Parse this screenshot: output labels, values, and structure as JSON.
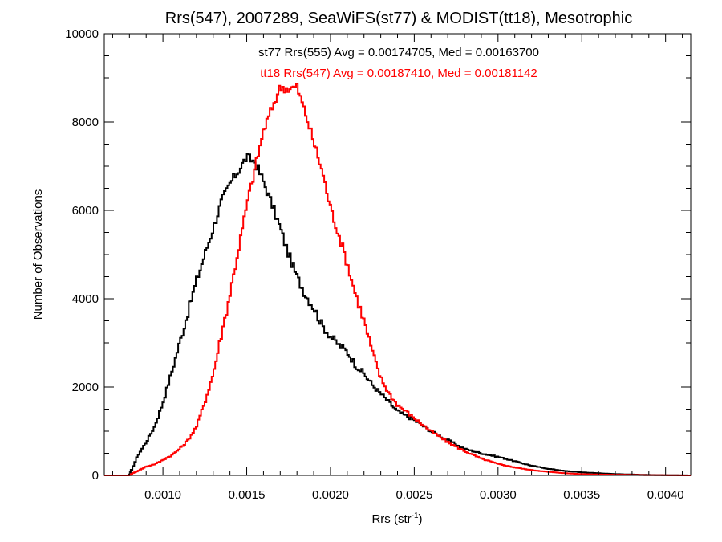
{
  "chart_data": {
    "type": "line",
    "title": "Rrs(547), 2007289, SeaWiFS(st77) & MODIST(tt18), Mesotrophic",
    "xlabel": "Rrs (str",
    "xlabel_sup": "-1",
    "xlabel_close": ")",
    "ylabel": "Number of Observations",
    "xlim": [
      0.00065,
      0.00415
    ],
    "ylim": [
      0,
      10000
    ],
    "xticks": [
      0.001,
      0.0015,
      0.002,
      0.0025,
      0.003,
      0.0035,
      0.004
    ],
    "xtick_labels": [
      "0.0010",
      "0.0015",
      "0.0020",
      "0.0025",
      "0.0030",
      "0.0035",
      "0.0040"
    ],
    "yticks": [
      0,
      2000,
      4000,
      6000,
      8000,
      10000
    ],
    "ytick_labels": [
      "0",
      "2000",
      "4000",
      "6000",
      "8000",
      "10000"
    ],
    "grid": false,
    "step": true,
    "annotations": [
      {
        "text": "st77 Rrs(555) Avg = 0.00174705, Med = 0.00163700",
        "color": "#000000"
      },
      {
        "text": "tt18 Rrs(547) Avg = 0.00187410, Med = 0.00181142",
        "color": "#ff0000"
      }
    ],
    "series": [
      {
        "color": "#000000",
        "x": [
          0.00065,
          0.0008,
          0.00081,
          0.00085,
          0.0009,
          0.00095,
          0.001,
          0.00105,
          0.0011,
          0.00115,
          0.0012,
          0.00125,
          0.0013,
          0.00135,
          0.0014,
          0.00145,
          0.0015,
          0.00155,
          0.0016,
          0.00165,
          0.0017,
          0.00175,
          0.0018,
          0.00185,
          0.0019,
          0.00195,
          0.002,
          0.00205,
          0.0021,
          0.00215,
          0.0022,
          0.00225,
          0.0023,
          0.00235,
          0.0024,
          0.0025,
          0.0026,
          0.0027,
          0.0028,
          0.0029,
          0.003,
          0.0031,
          0.0032,
          0.0033,
          0.0034,
          0.0035,
          0.0036,
          0.0037,
          0.0038,
          0.0039,
          0.004,
          0.00415
        ],
        "y": [
          0,
          0,
          100,
          450,
          750,
          1100,
          1650,
          2300,
          3000,
          3700,
          4400,
          5000,
          5600,
          6200,
          6600,
          6900,
          7200,
          7100,
          6650,
          6150,
          5600,
          5000,
          4500,
          4100,
          3800,
          3400,
          3150,
          2950,
          2800,
          2500,
          2300,
          2050,
          1850,
          1650,
          1450,
          1250,
          1000,
          800,
          600,
          500,
          420,
          320,
          220,
          150,
          100,
          70,
          50,
          30,
          20,
          10,
          5,
          0
        ]
      },
      {
        "color": "#ff0000",
        "x": [
          0.00065,
          0.0008,
          0.00082,
          0.00085,
          0.0009,
          0.00095,
          0.001,
          0.00105,
          0.0011,
          0.00115,
          0.0012,
          0.00125,
          0.0013,
          0.00135,
          0.0014,
          0.00145,
          0.0015,
          0.00155,
          0.0016,
          0.00165,
          0.0017,
          0.00175,
          0.0018,
          0.00185,
          0.0019,
          0.00195,
          0.002,
          0.00205,
          0.0021,
          0.00215,
          0.0022,
          0.00225,
          0.0023,
          0.00235,
          0.0024,
          0.00245,
          0.0025,
          0.0026,
          0.0027,
          0.0028,
          0.0029,
          0.003,
          0.0031,
          0.0032,
          0.0033,
          0.0034,
          0.0035,
          0.0036,
          0.0037,
          0.0038,
          0.0039,
          0.004,
          0.00415
        ],
        "y": [
          0,
          0,
          50,
          100,
          200,
          250,
          350,
          450,
          600,
          800,
          1100,
          1650,
          2300,
          3200,
          4100,
          5100,
          6100,
          6950,
          7800,
          8300,
          8800,
          8750,
          8800,
          8200,
          7550,
          6900,
          6050,
          5450,
          4800,
          4100,
          3500,
          2800,
          2200,
          1850,
          1600,
          1450,
          1300,
          1000,
          750,
          550,
          380,
          260,
          180,
          120,
          80,
          50,
          30,
          20,
          15,
          10,
          5,
          3,
          0
        ]
      }
    ]
  }
}
